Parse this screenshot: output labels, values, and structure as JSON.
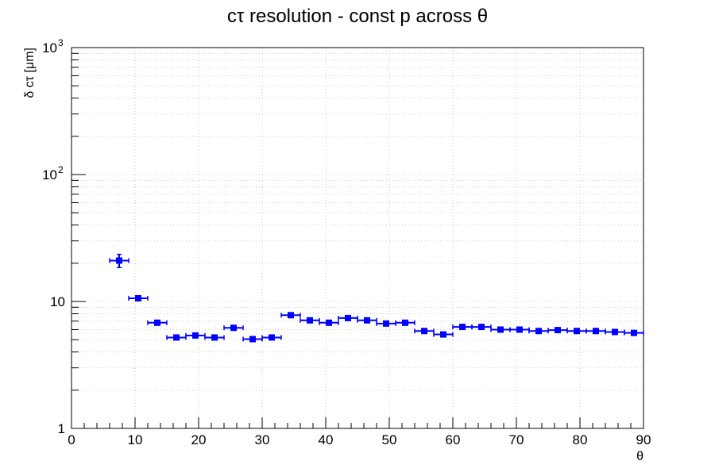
{
  "chart_data": {
    "type": "scatter",
    "title": "cτ resolution - const p across θ",
    "xlabel": "θ",
    "ylabel": "δ cτ [μm]",
    "xlim": [
      0,
      90
    ],
    "ylim": [
      1,
      1000
    ],
    "yscale": "log",
    "grid": true,
    "x_ticks": [
      0,
      10,
      20,
      30,
      40,
      50,
      60,
      70,
      80,
      90
    ],
    "y_ticks": [
      {
        "value": 1,
        "label": "1",
        "sup": ""
      },
      {
        "value": 10,
        "label": "10",
        "sup": ""
      },
      {
        "value": 100,
        "label": "10",
        "sup": "2"
      },
      {
        "value": 1000,
        "label": "10",
        "sup": "3"
      }
    ],
    "series": [
      {
        "color": "#0000ff",
        "bin_half_width": 1.5,
        "points": [
          {
            "x": 7.5,
            "y": 21,
            "yerr": 2.5
          },
          {
            "x": 10.5,
            "y": 10.6,
            "yerr": 0.4
          },
          {
            "x": 13.5,
            "y": 6.8,
            "yerr": 0.25
          },
          {
            "x": 16.5,
            "y": 5.2,
            "yerr": 0.2
          },
          {
            "x": 19.5,
            "y": 5.4,
            "yerr": 0.2
          },
          {
            "x": 22.5,
            "y": 5.2,
            "yerr": 0.2
          },
          {
            "x": 25.5,
            "y": 6.2,
            "yerr": 0.2
          },
          {
            "x": 28.5,
            "y": 5.05,
            "yerr": 0.2
          },
          {
            "x": 31.5,
            "y": 5.2,
            "yerr": 0.2
          },
          {
            "x": 34.5,
            "y": 7.8,
            "yerr": 0.25
          },
          {
            "x": 37.5,
            "y": 7.1,
            "yerr": 0.25
          },
          {
            "x": 40.5,
            "y": 6.8,
            "yerr": 0.2
          },
          {
            "x": 43.5,
            "y": 7.4,
            "yerr": 0.25
          },
          {
            "x": 46.5,
            "y": 7.1,
            "yerr": 0.2
          },
          {
            "x": 49.5,
            "y": 6.7,
            "yerr": 0.2
          },
          {
            "x": 52.5,
            "y": 6.8,
            "yerr": 0.2
          },
          {
            "x": 55.5,
            "y": 5.85,
            "yerr": 0.2
          },
          {
            "x": 58.5,
            "y": 5.5,
            "yerr": 0.2
          },
          {
            "x": 61.5,
            "y": 6.3,
            "yerr": 0.2
          },
          {
            "x": 64.5,
            "y": 6.3,
            "yerr": 0.2
          },
          {
            "x": 67.5,
            "y": 6.0,
            "yerr": 0.2
          },
          {
            "x": 70.5,
            "y": 6.0,
            "yerr": 0.2
          },
          {
            "x": 73.5,
            "y": 5.85,
            "yerr": 0.2
          },
          {
            "x": 76.5,
            "y": 5.95,
            "yerr": 0.2
          },
          {
            "x": 79.5,
            "y": 5.85,
            "yerr": 0.2
          },
          {
            "x": 82.5,
            "y": 5.85,
            "yerr": 0.2
          },
          {
            "x": 85.5,
            "y": 5.75,
            "yerr": 0.2
          },
          {
            "x": 88.5,
            "y": 5.65,
            "yerr": 0.2
          }
        ]
      }
    ]
  }
}
